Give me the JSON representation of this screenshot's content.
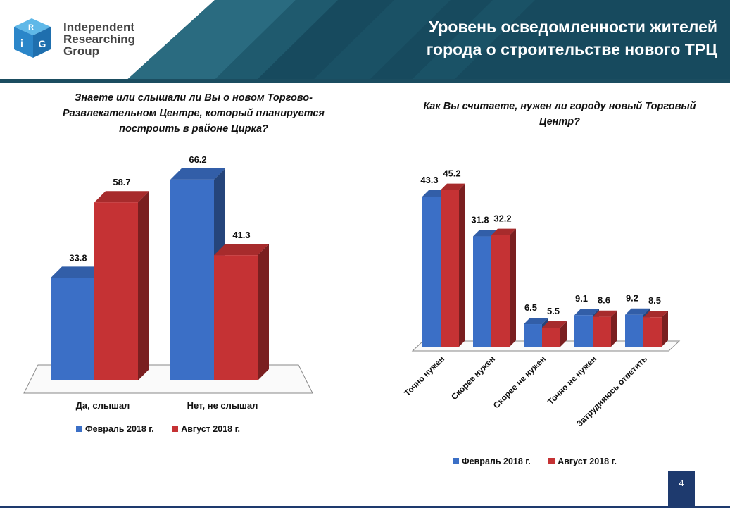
{
  "header": {
    "logo_letters": [
      "R",
      "i",
      "G"
    ],
    "logo_text": [
      "Independent",
      "Researching",
      "Group"
    ],
    "title": "Уровень осведомленности жителей города о строительстве нового ТРЦ"
  },
  "page_number": "4",
  "colors": {
    "series_feb": "#3b6fc6",
    "series_aug": "#c53234",
    "header_dark": "#174a5e",
    "header_mid": "#2a6b80"
  },
  "charts": [
    {
      "question": "Знаете или слышали ли Вы о новом Торгово-Развлекательном Центре, который планируется построить в районе Цирка?"
    },
    {
      "question": "Как Вы считаете, нужен ли городу новый Торговый Центр?"
    }
  ],
  "chart_data": [
    {
      "type": "bar",
      "title": "Знаете или слышали ли Вы о новом Торгово-Развлекательном Центре, который планируется построить в районе Цирка?",
      "categories": [
        "Да, слышал",
        "Нет, не слышал"
      ],
      "series": [
        {
          "name": "Февраль 2018 г.",
          "values": [
            33.8,
            66.2
          ]
        },
        {
          "name": "Август 2018 г.",
          "values": [
            58.7,
            41.3
          ]
        }
      ],
      "ylim": [
        0,
        75
      ],
      "legend": "bottom",
      "grid": false
    },
    {
      "type": "bar",
      "title": "Как Вы считаете, нужен ли городу новый Торговый Центр?",
      "categories": [
        "Точно нужен",
        "Скорее нужен",
        "Скорее не нужен",
        "Точно не нужен",
        "Затрудняюсь ответить"
      ],
      "series": [
        {
          "name": "Февраль 2018 г.",
          "values": [
            43.3,
            31.8,
            6.5,
            9.1,
            9.2
          ]
        },
        {
          "name": "Август 2018 г.",
          "values": [
            45.2,
            32.2,
            5.5,
            8.6,
            8.5
          ]
        }
      ],
      "ylim": [
        0,
        50
      ],
      "legend": "bottom",
      "grid": false
    }
  ]
}
